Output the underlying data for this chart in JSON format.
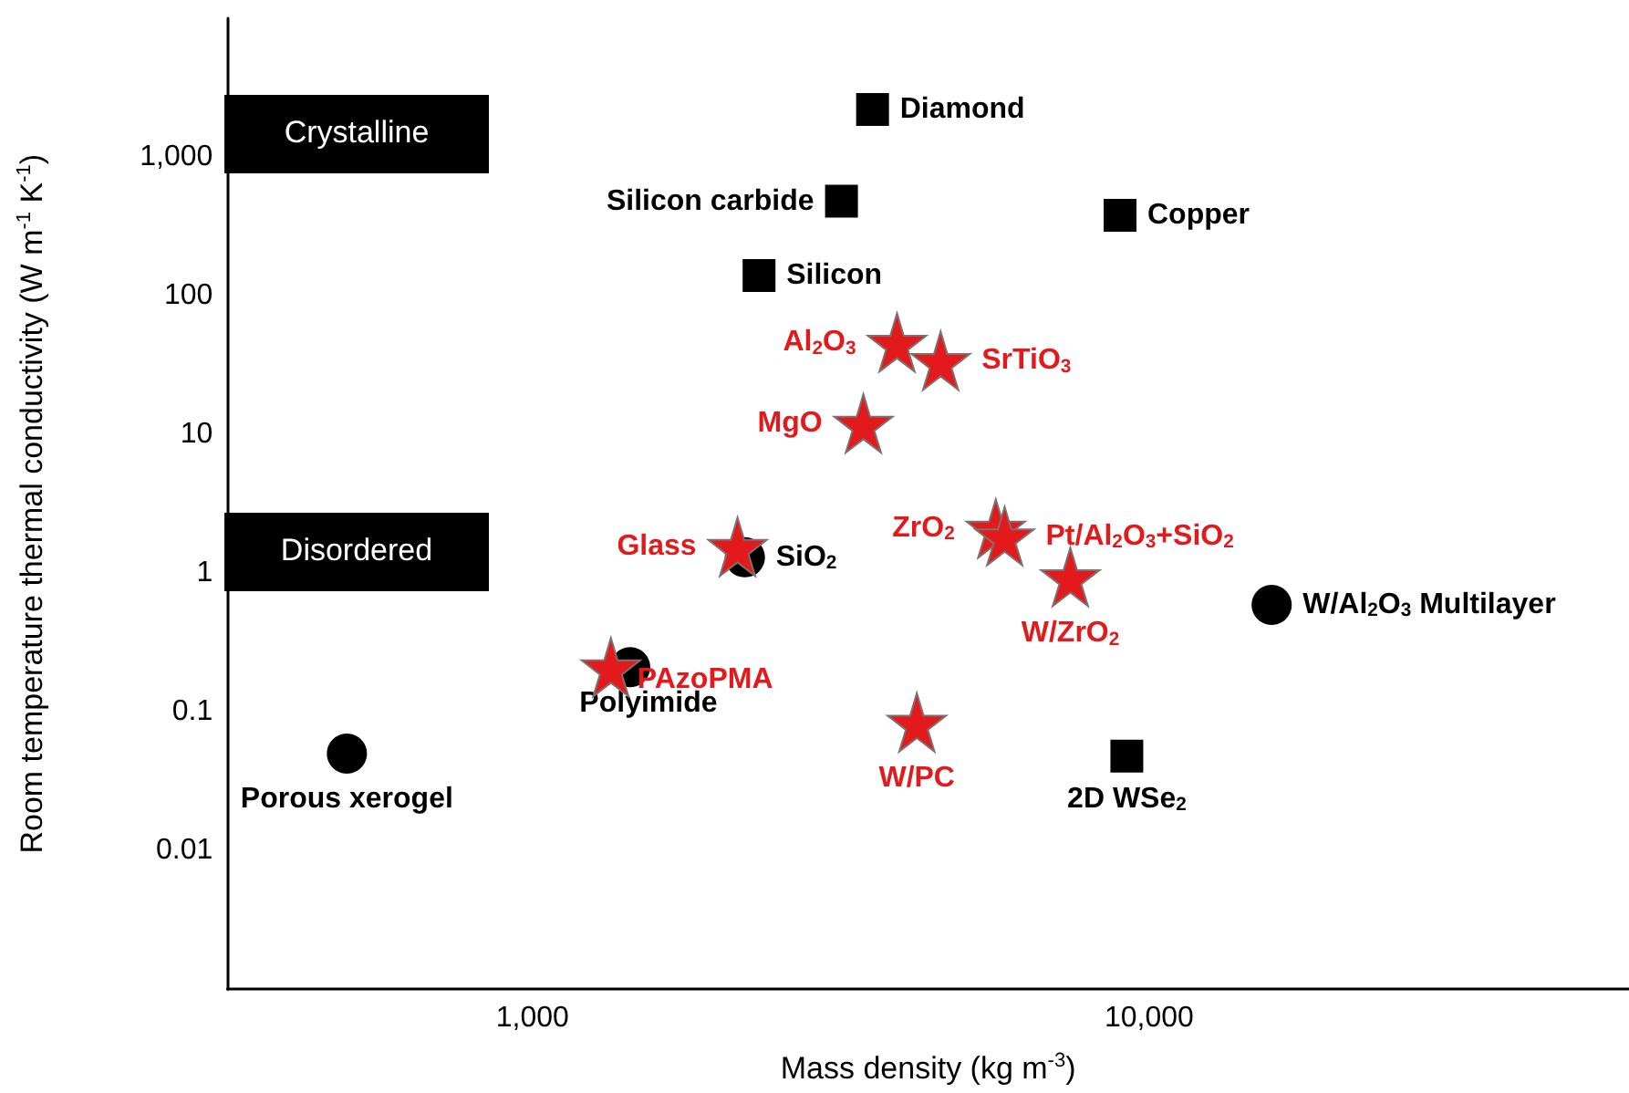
{
  "chart_data": {
    "type": "scatter",
    "xlabel": "Mass density (kg m$^{-3}$)",
    "ylabel": "Room temperature thermal conductivity (W m$^{-1}$ K$^{-1}$)",
    "log": "xy",
    "grid": false,
    "legend": false,
    "xlim": [
      320,
      60000
    ],
    "xticks": [
      {
        "value": 1000,
        "label": "1,000"
      },
      {
        "value": 10000,
        "label": "10,000"
      }
    ],
    "ylim": [
      0.001,
      10000
    ],
    "yticks": [
      0.01,
      0.1,
      1,
      10,
      100,
      {
        "value": 1000,
        "label": "1,000"
      }
    ],
    "annotations": [
      "Crystalline",
      "Disordered"
    ],
    "series": [
      {
        "name": "Diamond",
        "color": "#000000",
        "marker": "square",
        "x": [
          3560
        ],
        "values": [
          2200
        ]
      },
      {
        "name": "Silicon carbide",
        "color": "#000000",
        "marker": "square",
        "x": [
          3170
        ],
        "values": [
          480
        ]
      },
      {
        "name": "Silicon",
        "color": "#000000",
        "marker": "square",
        "x": [
          2330
        ],
        "values": [
          140
        ]
      },
      {
        "name": "Copper",
        "color": "#000000",
        "marker": "square",
        "x": [
          8970
        ],
        "values": [
          380
        ]
      },
      {
        "name": "2D WSe$_{2}$",
        "color": "#000000",
        "marker": "square",
        "x": [
          9200
        ],
        "values": [
          0.048
        ]
      },
      {
        "name": "Porous xerogel",
        "color": "#000000",
        "marker": "circle",
        "x": [
          500
        ],
        "values": [
          0.05
        ]
      },
      {
        "name": "Polyimide",
        "color": "#000000",
        "marker": "circle",
        "x": [
          1440
        ],
        "values": [
          0.21
        ]
      },
      {
        "name": "SiO$_{2}$",
        "color": "#000000",
        "marker": "circle",
        "x": [
          2210
        ],
        "values": [
          1.3
        ]
      },
      {
        "name": "W/Al$_{2}$O$_{3}$ Multilayer",
        "color": "#000000",
        "marker": "circle",
        "x": [
          15800
        ],
        "values": [
          0.59
        ]
      },
      {
        "name": "Al$_{2}$O$_{3}$",
        "color": "#e31a1c",
        "marker": "star",
        "x": [
          3900
        ],
        "values": [
          46
        ]
      },
      {
        "name": "SrTiO$_{3}$",
        "color": "#e31a1c",
        "marker": "star",
        "x": [
          4590
        ],
        "values": [
          34
        ]
      },
      {
        "name": "MgO",
        "color": "#e31a1c",
        "marker": "star",
        "x": [
          3440
        ],
        "values": [
          12
        ]
      },
      {
        "name": "Glass",
        "color": "#e31a1c",
        "marker": "star",
        "x": [
          2150
        ],
        "values": [
          1.55
        ]
      },
      {
        "name": "PAzoPMA",
        "color": "#e31a1c",
        "marker": "star",
        "x": [
          1340
        ],
        "values": [
          0.21
        ]
      },
      {
        "name": "ZrO$_{2}$",
        "color": "#e31a1c",
        "marker": "star",
        "x": [
          5640
        ],
        "values": [
          2.1
        ]
      },
      {
        "name": "Pt/Al$_{2}$O$_{3}$+SiO$_{2}$",
        "color": "#e31a1c",
        "marker": "star",
        "x": [
          5830
        ],
        "values": [
          1.85
        ]
      },
      {
        "name": "W/ZrO$_{2}$",
        "color": "#e31a1c",
        "marker": "star",
        "x": [
          7450
        ],
        "values": [
          0.94
        ]
      },
      {
        "name": "W/PC",
        "color": "#e31a1c",
        "marker": "star",
        "x": [
          4200
        ],
        "values": [
          0.084
        ]
      }
    ]
  }
}
